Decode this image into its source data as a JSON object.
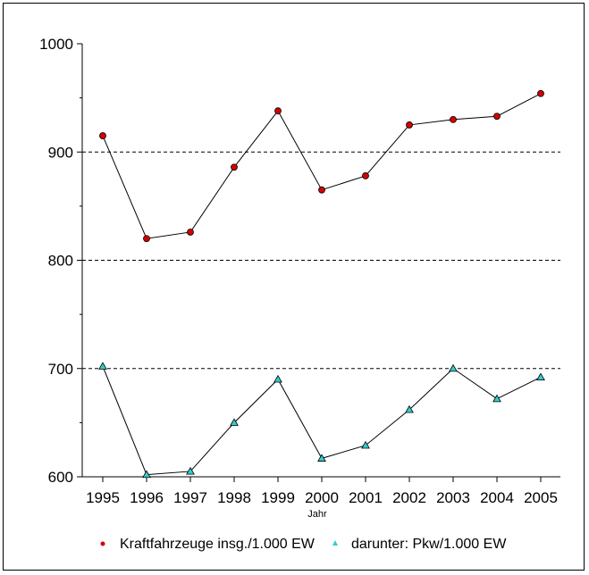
{
  "chart_data": {
    "type": "line",
    "x": [
      1995,
      1996,
      1997,
      1998,
      1999,
      2000,
      2001,
      2002,
      2003,
      2004,
      2005
    ],
    "xlabel": "Jahr",
    "ylabel": "",
    "ylim": [
      600,
      1000
    ],
    "yticks": [
      600,
      700,
      800,
      900,
      1000
    ],
    "grid": "horizontal dashed at 700, 800, 900",
    "legend_position": "bottom",
    "series": [
      {
        "name": "Kraftfahrzeuge insg./1.000 EW",
        "marker": "circle",
        "color": "#d40000",
        "values": [
          915,
          820,
          826,
          886,
          938,
          865,
          878,
          925,
          930,
          933,
          954
        ]
      },
      {
        "name": "darunter: Pkw/1.000 EW",
        "marker": "triangle",
        "color": "#33cccc",
        "values": [
          702,
          602,
          605,
          650,
          690,
          617,
          629,
          662,
          700,
          672,
          692
        ]
      }
    ]
  }
}
